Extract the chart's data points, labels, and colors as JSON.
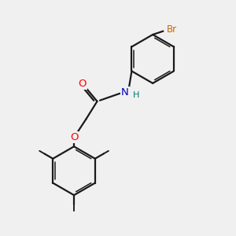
{
  "bg_color": "#f0f0f0",
  "bond_color": "#1a1a1a",
  "bond_width": 1.6,
  "atom_colors": {
    "O": "#ff0000",
    "N": "#0000bb",
    "H": "#007777",
    "Br": "#cc6600",
    "C": "#1a1a1a"
  },
  "font_size_atom": 8.5,
  "font_size_H": 8.0
}
